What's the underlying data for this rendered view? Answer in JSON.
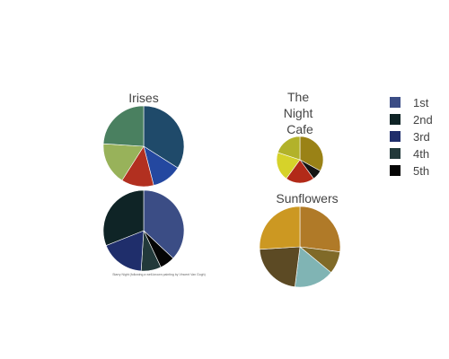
{
  "chart_data": {
    "type": "pie",
    "legend": {
      "placement": "right",
      "items": [
        {
          "label": "1st",
          "color": "#3b4d85"
        },
        {
          "label": "2nd",
          "color": "#0f2426"
        },
        {
          "label": "3rd",
          "color": "#1f2e6b"
        },
        {
          "label": "4th",
          "color": "#22393a"
        },
        {
          "label": "5th",
          "color": "#050505"
        }
      ]
    },
    "pies": [
      {
        "id": "irises",
        "title": "Irises",
        "caption": "",
        "slices": [
          {
            "value": 34,
            "color": "#1f4a6a"
          },
          {
            "value": 12,
            "color": "#2448a0"
          },
          {
            "value": 13,
            "color": "#b23020"
          },
          {
            "value": 17,
            "color": "#98b25a"
          },
          {
            "value": 24,
            "color": "#4a8060"
          }
        ]
      },
      {
        "id": "night-cafe",
        "title_lines": [
          "The",
          "Night",
          "Cafe"
        ],
        "caption": "",
        "slices": [
          {
            "value": 33,
            "color": "#9a8216"
          },
          {
            "value": 7,
            "color": "#141414"
          },
          {
            "value": 20,
            "color": "#b22a18"
          },
          {
            "value": 20,
            "color": "#d6d22a"
          },
          {
            "value": 20,
            "color": "#b2b22a"
          }
        ]
      },
      {
        "id": "starry-night",
        "title": "",
        "caption": "Starry Night (following a well-known painting by Vincent Van Gogh)",
        "slices": [
          {
            "value": 37,
            "color": "#3b4d85"
          },
          {
            "value": 6,
            "color": "#050505"
          },
          {
            "value": 8,
            "color": "#22393a"
          },
          {
            "value": 18,
            "color": "#1f2e6b"
          },
          {
            "value": 31,
            "color": "#0f2426"
          }
        ]
      },
      {
        "id": "sunflowers",
        "title": "Sunflowers",
        "caption": "",
        "slices": [
          {
            "value": 27,
            "color": "#b07a28"
          },
          {
            "value": 9,
            "color": "#806a28"
          },
          {
            "value": 16,
            "color": "#80b4b4"
          },
          {
            "value": 22,
            "color": "#5c4a24"
          },
          {
            "value": 26,
            "color": "#cc9822"
          }
        ]
      }
    ]
  }
}
